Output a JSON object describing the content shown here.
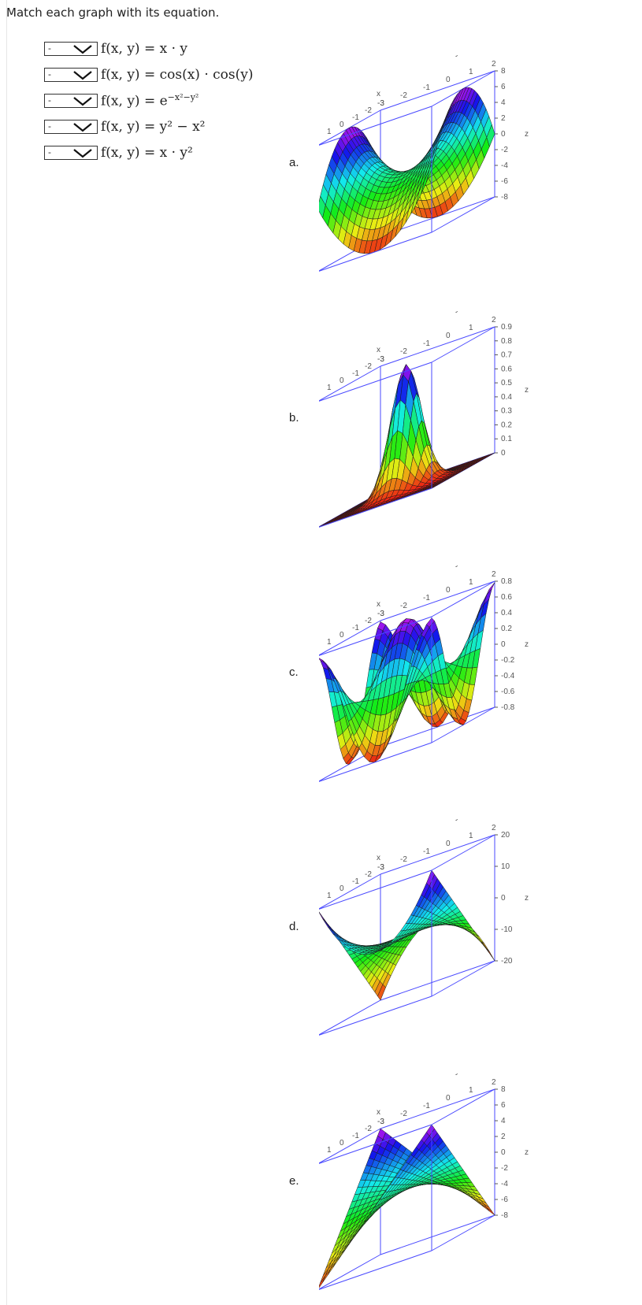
{
  "instructions": "Match each graph with its equation.",
  "select_placeholder": "-",
  "equations": [
    {
      "text": "f(x, y) = x · y"
    },
    {
      "text": "f(x, y) = cos(x) · cos(y)"
    },
    {
      "text": "f(x, y) = e",
      "sup": "−x²−y²"
    },
    {
      "text": "f(x, y) = y² − x²"
    },
    {
      "text": "f(x, y) = x · y²"
    }
  ],
  "graphs": [
    {
      "label": "a.",
      "z_ticks": [
        "8",
        "6",
        "4",
        "2",
        "0",
        "-2",
        "-4",
        "-6",
        "-8"
      ],
      "surface": "saddle_y2_minus_x2"
    },
    {
      "label": "b.",
      "z_ticks": [
        "0.9",
        "0.8",
        "0.7",
        "0.6",
        "0.5",
        "0.4",
        "0.3",
        "0.2",
        "0.1",
        "0"
      ],
      "surface": "gaussian"
    },
    {
      "label": "c.",
      "z_ticks": [
        "0.8",
        "0.6",
        "0.4",
        "0.2",
        "0",
        "-0.2",
        "-0.4",
        "-0.6",
        "-0.8"
      ],
      "surface": "cos_cos"
    },
    {
      "label": "d.",
      "z_ticks": [
        "20",
        "10",
        "0",
        "-10",
        "-20"
      ],
      "surface": "x_times_y2"
    },
    {
      "label": "e.",
      "z_ticks": [
        "8",
        "6",
        "4",
        "2",
        "0",
        "-2",
        "-4",
        "-6",
        "-8"
      ],
      "surface": "x_times_y"
    }
  ],
  "axes": {
    "x_label": "x",
    "y_label": "y",
    "z_label": "z",
    "x_ticks": [
      "2",
      "1",
      "0",
      "-1",
      "-2",
      "-3"
    ],
    "y_ticks": [
      "-3",
      "-2",
      "-1",
      "0",
      "1",
      "2"
    ]
  },
  "colors": {
    "box": "#4a4aff",
    "text": "#222222"
  }
}
